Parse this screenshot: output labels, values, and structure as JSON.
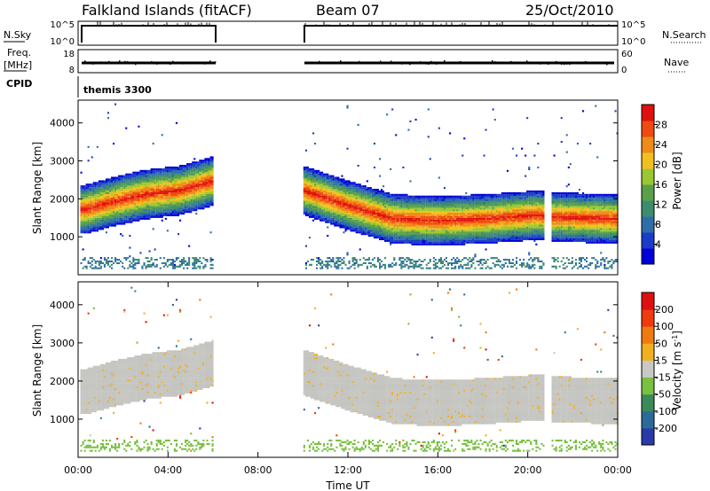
{
  "header": {
    "site": "Falkland Islands (fitACF)",
    "beam": "Beam 07",
    "date": "25/Oct/2010"
  },
  "params": {
    "nsky_label": "N.Sky",
    "nsky_ticks": [
      "10^5",
      "10^0"
    ],
    "nsearch_label": "N.Search",
    "nsearch_ticks": [
      "10^5",
      "10^0"
    ],
    "freq_label_1": "Freq.",
    "freq_label_2": "[MHz]",
    "freq_ticks": [
      "18",
      "8"
    ],
    "nave_label": "Nave",
    "nave_ticks": [
      "60",
      "0"
    ],
    "cpid_label": "CPID",
    "cpid_value": "themis 3300"
  },
  "colors": {
    "power_scale": [
      "#0000d8",
      "#1a3cc8",
      "#2e6ea8",
      "#3e8c6e",
      "#5aa04a",
      "#9ac832",
      "#f0c020",
      "#f08a18",
      "#f04a10",
      "#e01010"
    ],
    "velocity_scale": [
      "#2a3aa8",
      "#2c6a9a",
      "#3a8a5a",
      "#78c040",
      "#c8c8c4",
      "#f0b020",
      "#f07a10",
      "#f03a10",
      "#e01010"
    ],
    "range_gray": "#c4c4c0"
  },
  "chart_data": [
    {
      "type": "heatmap",
      "name": "power",
      "x_unit": "hours UT",
      "xlim": [
        0,
        24
      ],
      "ylim": [
        0,
        4600
      ],
      "ylabel": "Slant Range [km]",
      "yticks": [
        "4000",
        "3000",
        "2000",
        "1000"
      ],
      "colorbar_label": "Power [dB]",
      "colorbar_ticks": [
        "28",
        "24",
        "20",
        "16",
        "12",
        "8",
        "4"
      ],
      "data_intervals": [
        [
          0.1,
          6.0
        ],
        [
          10.0,
          20.7
        ],
        [
          21.0,
          24.0
        ]
      ],
      "band_center_km": [
        [
          0.3,
          1700
        ],
        [
          1.5,
          1900
        ],
        [
          3.0,
          2100
        ],
        [
          4.5,
          2200
        ],
        [
          6.0,
          2450
        ],
        [
          10.0,
          2200
        ],
        [
          12.0,
          1800
        ],
        [
          14.0,
          1450
        ],
        [
          16.0,
          1400
        ],
        [
          18.0,
          1450
        ],
        [
          20.5,
          1550
        ],
        [
          21.0,
          1500
        ],
        [
          24.0,
          1450
        ]
      ],
      "band_peak_db": 28
    },
    {
      "type": "heatmap",
      "name": "velocity",
      "x_unit": "hours UT",
      "xlim": [
        0,
        24
      ],
      "ylim": [
        0,
        4600
      ],
      "ylabel": "Slant Range [km]",
      "yticks": [
        "4000",
        "3000",
        "2000",
        "1000"
      ],
      "xlabel": "Time UT",
      "xticks": [
        "00:00",
        "04:00",
        "08:00",
        "12:00",
        "16:00",
        "20:00",
        "00:00"
      ],
      "colorbar_label": "Velocity [m s^-1]",
      "colorbar_ticks": [
        "200",
        "100",
        "50",
        "15",
        "-15",
        "-50",
        "-100",
        "-200"
      ],
      "dominant_velocity_bin": "-15 to 15"
    }
  ]
}
